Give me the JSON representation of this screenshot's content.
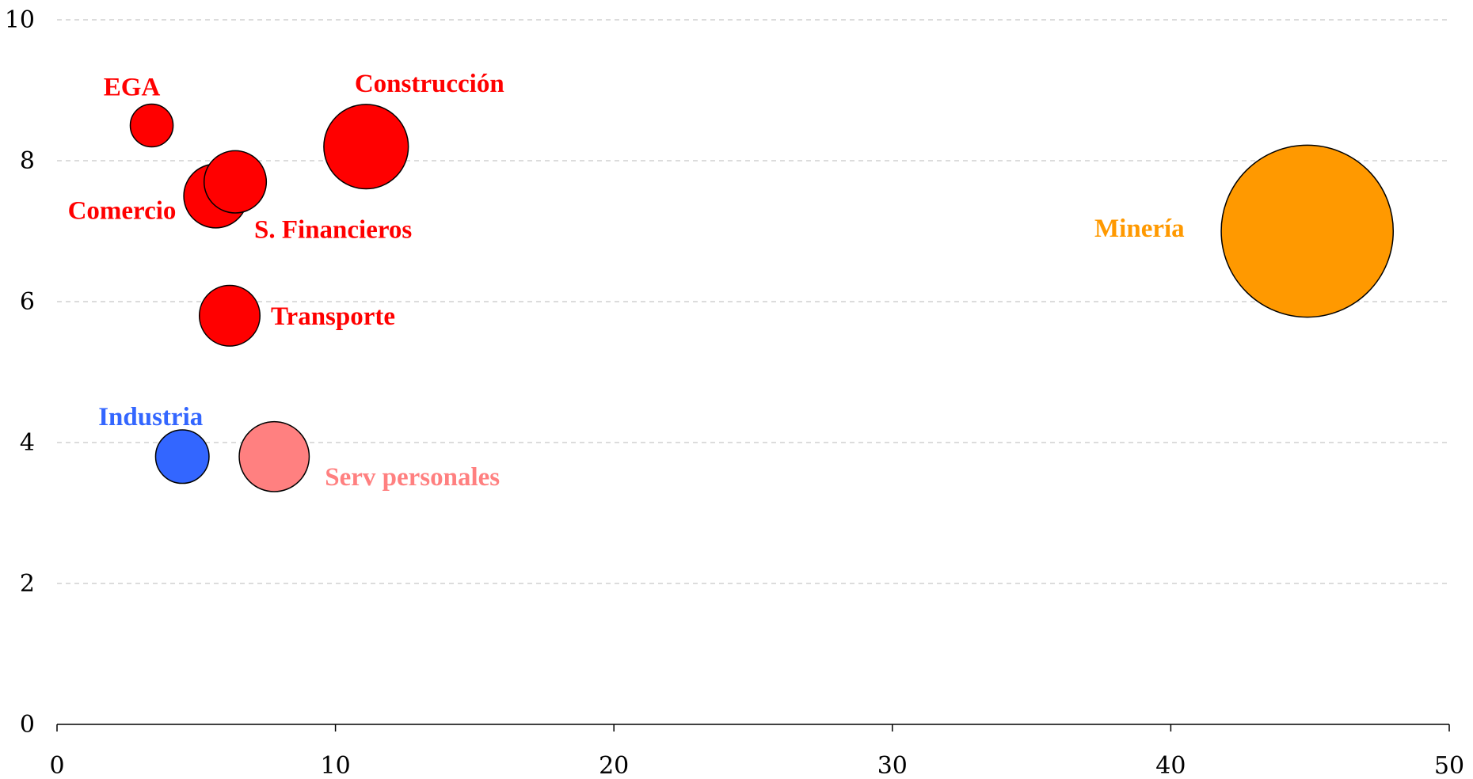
{
  "chart_data": {
    "type": "bubble",
    "title": "",
    "xlabel": "",
    "ylabel": "",
    "xlim": [
      0,
      50
    ],
    "ylim": [
      0,
      10
    ],
    "xticks": [
      0,
      10,
      20,
      30,
      40,
      50
    ],
    "yticks": [
      0,
      2,
      4,
      6,
      8,
      10
    ],
    "grid": "horizontal dashed",
    "points": [
      {
        "label": "EGA",
        "x": 3.4,
        "y": 8.5,
        "size": 0.9,
        "color": "#ff0000"
      },
      {
        "label": "Construcción",
        "x": 11.1,
        "y": 8.2,
        "size": 3.5,
        "color": "#ff0000"
      },
      {
        "label": "Comercio",
        "x": 5.7,
        "y": 7.5,
        "size": 2.0,
        "color": "#ff0000"
      },
      {
        "label": "S. Financieros",
        "x": 6.4,
        "y": 7.7,
        "size": 1.9,
        "color": "#ff0000"
      },
      {
        "label": "Minería",
        "x": 44.9,
        "y": 7.0,
        "size": 14.5,
        "color": "#ff9900"
      },
      {
        "label": "Transporte",
        "x": 6.2,
        "y": 5.8,
        "size": 1.8,
        "color": "#ff0000"
      },
      {
        "label": "Industria",
        "x": 4.5,
        "y": 3.8,
        "size": 1.4,
        "color": "#3366ff"
      },
      {
        "label": "Serv personales",
        "x": 7.8,
        "y": 3.8,
        "size": 2.4,
        "color": "#ff8080"
      }
    ]
  }
}
